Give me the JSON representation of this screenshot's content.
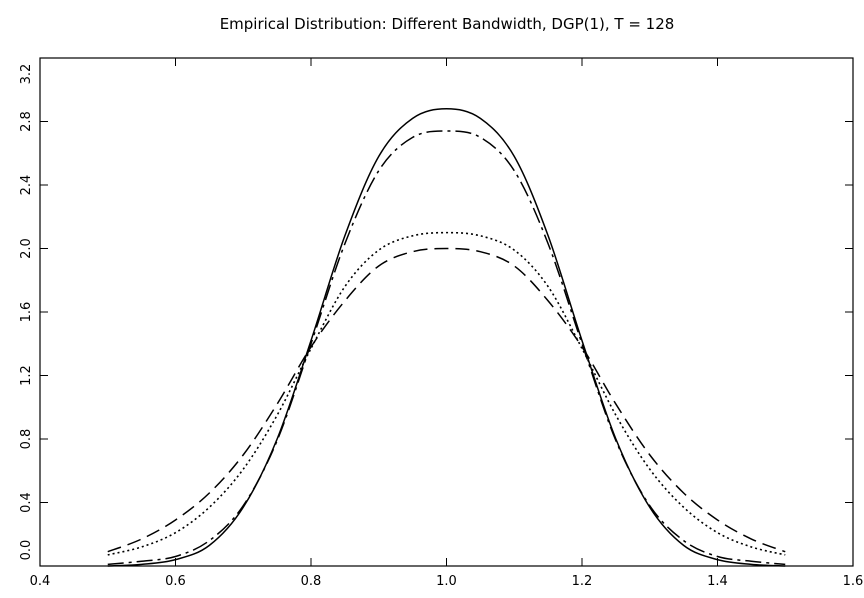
{
  "chart_data": {
    "type": "line",
    "title": "Empirical Distribution: Different Bandwidth, DGP(1), T = 128",
    "xlabel": "",
    "ylabel": "",
    "xlim": [
      0.4,
      1.6
    ],
    "ylim": [
      0.0,
      3.2
    ],
    "xticks": [
      "0.4",
      "0.6",
      "0.8",
      "1.0",
      "1.2",
      "1.4",
      "1.6"
    ],
    "yticks": [
      "0.0",
      "0.4",
      "0.8",
      "1.2",
      "1.6",
      "2.0",
      "2.4",
      "2.8",
      "3.2"
    ],
    "grid": false,
    "legend": "none",
    "x": [
      0.5,
      0.55,
      0.6,
      0.65,
      0.7,
      0.75,
      0.8,
      0.85,
      0.9,
      0.95,
      1.0,
      1.05,
      1.1,
      1.15,
      1.2,
      1.25,
      1.3,
      1.35,
      1.4,
      1.45,
      1.5
    ],
    "series": [
      {
        "style": "solid",
        "values": [
          0.0,
          0.01,
          0.04,
          0.13,
          0.37,
          0.8,
          1.42,
          2.08,
          2.58,
          2.82,
          2.88,
          2.82,
          2.58,
          2.08,
          1.42,
          0.8,
          0.37,
          0.13,
          0.04,
          0.01,
          0.0
        ]
      },
      {
        "style": "dash-dot",
        "values": [
          0.01,
          0.03,
          0.06,
          0.16,
          0.38,
          0.79,
          1.4,
          2.03,
          2.49,
          2.7,
          2.74,
          2.7,
          2.49,
          2.03,
          1.4,
          0.79,
          0.38,
          0.16,
          0.06,
          0.03,
          0.01
        ]
      },
      {
        "style": "dotted",
        "values": [
          0.07,
          0.12,
          0.21,
          0.37,
          0.61,
          0.95,
          1.37,
          1.76,
          1.99,
          2.08,
          2.1,
          2.08,
          1.99,
          1.76,
          1.37,
          0.95,
          0.61,
          0.37,
          0.21,
          0.12,
          0.07
        ]
      },
      {
        "style": "dashed",
        "values": [
          0.09,
          0.17,
          0.29,
          0.46,
          0.7,
          1.02,
          1.38,
          1.67,
          1.89,
          1.98,
          2.0,
          1.98,
          1.89,
          1.67,
          1.38,
          1.02,
          0.7,
          0.46,
          0.29,
          0.17,
          0.09
        ]
      }
    ]
  }
}
